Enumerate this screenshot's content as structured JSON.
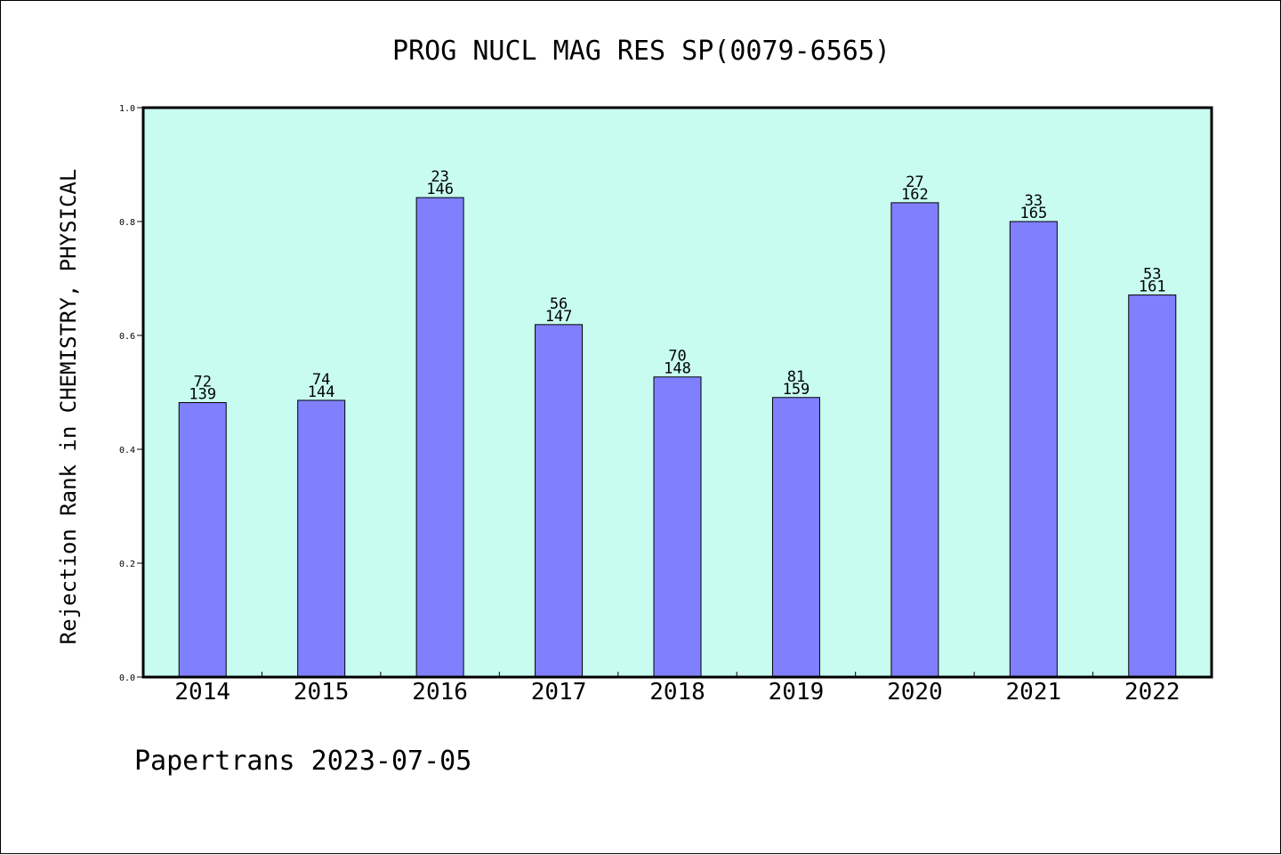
{
  "chart_data": {
    "type": "bar",
    "title": "PROG NUCL MAG RES SP(0079-6565)",
    "ylabel": "Rejection Rank in CHEMISTRY, PHYSICAL",
    "xlabel": "",
    "footer": "Papertrans 2023-07-05",
    "ylim": [
      0,
      1.0
    ],
    "yticks": [
      "0.0",
      "0.2",
      "0.4",
      "0.6",
      "0.8",
      "1.0"
    ],
    "categories": [
      "2014",
      "2015",
      "2016",
      "2017",
      "2018",
      "2019",
      "2020",
      "2021",
      "2022"
    ],
    "values": [
      0.482,
      0.486,
      0.842,
      0.619,
      0.527,
      0.491,
      0.833,
      0.8,
      0.671
    ],
    "label_top": [
      "72",
      "74",
      "23",
      "56",
      "70",
      "81",
      "27",
      "33",
      "53"
    ],
    "label_bottom": [
      "139",
      "144",
      "146",
      "147",
      "148",
      "159",
      "162",
      "165",
      "161"
    ],
    "grid": false,
    "legend": "none",
    "colors": {
      "plot_background": "#c8fcf0",
      "bar_fill": "#8080ff",
      "bar_stroke": "#000000",
      "axis": "#000000"
    }
  }
}
